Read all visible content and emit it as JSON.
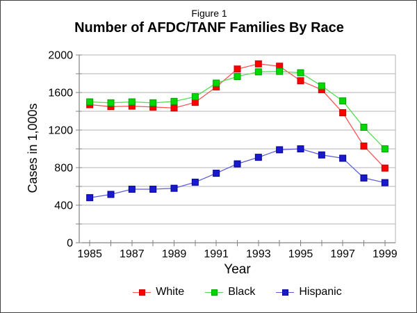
{
  "figure_label": "Figure 1",
  "chart_data": {
    "type": "line",
    "figure_label": "Figure 1",
    "title": "Number of AFDC/TANF Families By Race",
    "xlabel": "Year",
    "ylabel": "Cases in 1,000s",
    "x": [
      1985,
      1986,
      1987,
      1988,
      1989,
      1990,
      1991,
      1992,
      1993,
      1994,
      1995,
      1996,
      1997,
      1998,
      1999
    ],
    "x_labeled_ticks": [
      1985,
      1987,
      1989,
      1991,
      1993,
      1995,
      1997,
      1999
    ],
    "ylim": [
      0,
      2000
    ],
    "y_major_ticks": [
      0,
      400,
      800,
      1200,
      1600,
      2000
    ],
    "y_minor_step": 200,
    "grid": true,
    "legend_position": "bottom",
    "series": [
      {
        "name": "White",
        "color": "#ff0000",
        "edge_color": "#c40000",
        "line_color": "#ff5050",
        "values": [
          1470,
          1450,
          1455,
          1445,
          1435,
          1495,
          1660,
          1850,
          1905,
          1880,
          1725,
          1630,
          1385,
          1030,
          795
        ]
      },
      {
        "name": "Black",
        "color": "#00d900",
        "edge_color": "#00a000",
        "line_color": "#4ddb4d",
        "values": [
          1500,
          1490,
          1500,
          1490,
          1505,
          1555,
          1700,
          1770,
          1820,
          1825,
          1810,
          1670,
          1510,
          1230,
          1000
        ]
      },
      {
        "name": "Hispanic",
        "color": "#1a1acc",
        "edge_color": "#000099",
        "line_color": "#5c5cd6",
        "values": [
          480,
          515,
          570,
          570,
          580,
          645,
          740,
          840,
          910,
          990,
          1000,
          935,
          900,
          690,
          640
        ]
      }
    ]
  },
  "colors": {
    "gridline": "#b3b3b3",
    "axis": "#666666",
    "tick": "#808080",
    "plot_border": "#b3b3b3",
    "text": "#000000",
    "background": "#ffffff"
  }
}
